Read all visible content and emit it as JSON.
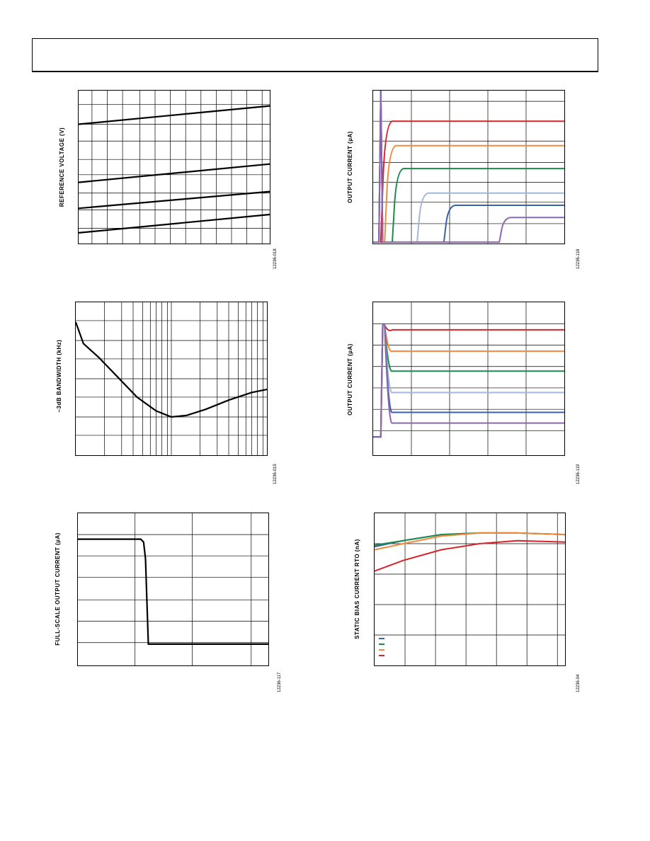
{
  "chart_data": [
    {
      "id": "reference-voltage-chart",
      "type": "line",
      "ylabel": "REFERENCE VOLTAGE (V)",
      "figure_id": "12236-018",
      "grid": true,
      "series": [
        {
          "color": "#000000",
          "points": [
            [
              0,
              0.78
            ],
            [
              1,
              0.9
            ]
          ]
        },
        {
          "color": "#000000",
          "points": [
            [
              0,
              0.4
            ],
            [
              1,
              0.52
            ]
          ]
        },
        {
          "color": "#000000",
          "points": [
            [
              0,
              0.23
            ],
            [
              1,
              0.34
            ]
          ]
        },
        {
          "color": "#000000",
          "points": [
            [
              0,
              0.07
            ],
            [
              1,
              0.19
            ]
          ]
        }
      ]
    },
    {
      "id": "output-current-chart-1",
      "type": "line",
      "ylabel": "OUTPUT CURRENT (µA)",
      "figure_id": "12236-118",
      "grid": true,
      "series": [
        {
          "color": "#d7232a",
          "level": 0.8,
          "rise": 0.04
        },
        {
          "color": "#f08a3c",
          "level": 0.64,
          "rise": 0.06
        },
        {
          "color": "#1b8a4a",
          "level": 0.49,
          "rise": 0.1
        },
        {
          "color": "#a3b7d8",
          "level": 0.33,
          "rise": 0.23
        },
        {
          "color": "#3a62a8",
          "level": 0.25,
          "rise": 0.37
        },
        {
          "color": "#8d65b0",
          "level": 0.17,
          "rise": 0.66
        }
      ]
    },
    {
      "id": "bandwidth-chart",
      "type": "line",
      "ylabel": "–3dB BANDWIDTH (kHz)",
      "figure_id": "12236-019",
      "grid": true,
      "series": [
        {
          "color": "#000000",
          "points": [
            [
              0,
              0.87
            ],
            [
              0.04,
              0.73
            ],
            [
              0.12,
              0.64
            ],
            [
              0.22,
              0.51
            ],
            [
              0.32,
              0.38
            ],
            [
              0.42,
              0.29
            ],
            [
              0.5,
              0.25
            ],
            [
              0.58,
              0.26
            ],
            [
              0.68,
              0.3
            ],
            [
              0.8,
              0.36
            ],
            [
              0.92,
              0.41
            ],
            [
              1,
              0.43
            ]
          ]
        }
      ]
    },
    {
      "id": "output-current-chart-2",
      "type": "line",
      "ylabel": "OUTPUT CURRENT (µA)",
      "figure_id": "12236-119",
      "grid": true,
      "series": [
        {
          "color": "#d7232a",
          "level": 0.82
        },
        {
          "color": "#f08a3c",
          "level": 0.68
        },
        {
          "color": "#1b8a4a",
          "level": 0.55
        },
        {
          "color": "#a3b7d8",
          "level": 0.41
        },
        {
          "color": "#3a62a8",
          "level": 0.28
        },
        {
          "color": "#8d65b0",
          "level": 0.21
        }
      ]
    },
    {
      "id": "full-scale-current-chart",
      "type": "line",
      "ylabel": "FULL-SCALE OUTPUT CURRENT (µA)",
      "figure_id": "12236-117",
      "grid": true,
      "series": [
        {
          "color": "#000000",
          "points": [
            [
              0,
              0.83
            ],
            [
              0.33,
              0.83
            ],
            [
              0.345,
              0.81
            ],
            [
              0.355,
              0.7
            ],
            [
              0.37,
              0.14
            ],
            [
              1,
              0.14
            ]
          ]
        }
      ]
    },
    {
      "id": "static-bias-current-chart",
      "type": "line",
      "ylabel": "STATIC BIAS CURRENT RTO (nA)",
      "figure_id": "12236-04",
      "grid": true,
      "legend": "bottom-left",
      "series": [
        {
          "color": "#3a62a8",
          "points": [
            [
              0,
              0.78
            ],
            [
              0.15,
              0.82
            ],
            [
              0.35,
              0.86
            ],
            [
              0.55,
              0.87
            ],
            [
              0.75,
              0.87
            ],
            [
              1,
              0.86
            ]
          ]
        },
        {
          "color": "#1b8a4a",
          "points": [
            [
              0,
              0.79
            ],
            [
              0.15,
              0.82
            ],
            [
              0.35,
              0.86
            ],
            [
              0.55,
              0.87
            ],
            [
              0.75,
              0.87
            ],
            [
              1,
              0.86
            ]
          ]
        },
        {
          "color": "#f08a3c",
          "points": [
            [
              0,
              0.76
            ],
            [
              0.15,
              0.8
            ],
            [
              0.35,
              0.85
            ],
            [
              0.55,
              0.87
            ],
            [
              0.75,
              0.87
            ],
            [
              1,
              0.86
            ]
          ]
        },
        {
          "color": "#d7232a",
          "points": [
            [
              0,
              0.62
            ],
            [
              0.15,
              0.69
            ],
            [
              0.35,
              0.76
            ],
            [
              0.55,
              0.8
            ],
            [
              0.75,
              0.82
            ],
            [
              1,
              0.81
            ]
          ]
        }
      ]
    }
  ]
}
